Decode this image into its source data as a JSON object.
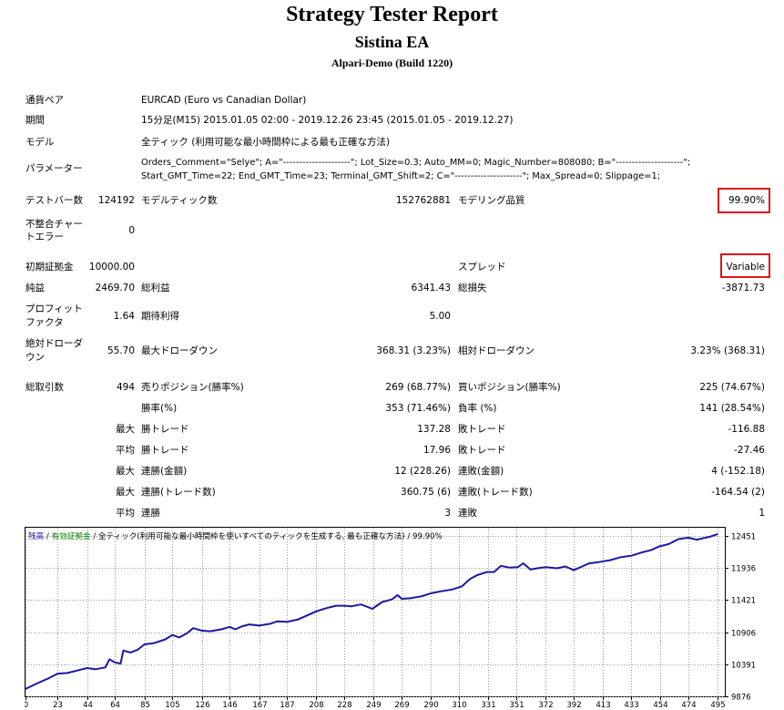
{
  "header": {
    "title": "Strategy Tester Report",
    "subtitle": "Sistina EA",
    "server": "Alpari-Demo (Build 1220)"
  },
  "settings": {
    "symbol_label": "通貨ペア",
    "symbol_value": "EURCAD (Euro vs Canadian Dollar)",
    "period_label": "期間",
    "period_value": "15分足(M15) 2015.01.05 02:00 - 2019.12.26 23:45 (2015.01.05 - 2019.12.27)",
    "model_label": "モデル",
    "model_value": "全ティック (利用可能な最小時間枠による最も正確な方法)",
    "params_label": "パラメーター",
    "params_line1": "Orders_Comment=\"Selye\"; A=\"---------------------\"; Lot_Size=0.3; Auto_MM=0; Magic_Number=808080; B=\"---------------------\";",
    "params_line2": "Start_GMT_Time=22; End_GMT_Time=23; Terminal_GMT_Shift=2; C=\"---------------------\"; Max_Spread=0; Slippage=1;"
  },
  "summary": {
    "bars_label": "テストバー数",
    "bars_value": "124192",
    "ticks_label": "モデルティック数",
    "ticks_value": "152762881",
    "quality_label": "モデリング品質",
    "quality_value": "99.90%",
    "mismatch_label_1": "不整合チャー",
    "mismatch_label_2": "トエラー",
    "mismatch_value": "0",
    "deposit_label": "初期証拠金",
    "deposit_value": "10000.00",
    "spread_label": "スプレッド",
    "spread_value": "Variable",
    "net_label": "純益",
    "net_value": "2469.70",
    "gross_profit_label": "総利益",
    "gross_profit_value": "6341.43",
    "gross_loss_label": "総損失",
    "gross_loss_value": "-3871.73",
    "pf_label_1": "プロフィット",
    "pf_label_2": "ファクタ",
    "pf_value": "1.64",
    "expected_label": "期待利得",
    "expected_value": "5.00",
    "abs_dd_label_1": "絶対ドローダ",
    "abs_dd_label_2": "ウン",
    "abs_dd_value": "55.70",
    "max_dd_label": "最大ドローダウン",
    "max_dd_value": "368.31 (3.23%)",
    "rel_dd_label": "相対ドローダウン",
    "rel_dd_value": "3.23% (368.31)"
  },
  "trades": {
    "total_label": "総取引数",
    "total_value": "494",
    "short_label": "売りポジション(勝率%)",
    "short_value": "269 (68.77%)",
    "long_label": "買いポジション(勝率%)",
    "long_value": "225 (74.67%)",
    "win_label": "勝率(%)",
    "win_value": "353 (71.46%)",
    "loss_label": "負率 (%)",
    "loss_value": "141 (28.54%)",
    "max1": "最大",
    "max_win_label": "勝トレード",
    "max_win_value": "137.28",
    "max_loss_label": "敗トレード",
    "max_loss_value": "-116.88",
    "avg1": "平均",
    "avg_win_label": "勝トレード",
    "avg_win_value": "17.96",
    "avg_loss_label": "敗トレード",
    "avg_loss_value": "-27.46",
    "max2": "最大",
    "cons_wins_money_label": "連勝(金額)",
    "cons_wins_money_value": "12 (228.26)",
    "cons_losses_money_label": "連敗(金額)",
    "cons_losses_money_value": "4 (-152.18)",
    "max3": "最大",
    "cons_profit_label": "連勝(トレード数)",
    "cons_profit_value": "360.75 (6)",
    "cons_loss_label": "連敗(トレード数)",
    "cons_loss_value": "-164.54 (2)",
    "avg2": "平均",
    "avg_cons_wins_label": "連勝",
    "avg_cons_wins_value": "3",
    "avg_cons_losses_label": "連敗",
    "avg_cons_losses_value": "1"
  },
  "chart_legend": {
    "balance": "残高",
    "sep1": " / ",
    "equity": "有効証拠金",
    "rest": " / 全ティック(利用可能な最小時間枠を使いすべてのティックを生成する, 最も正確な方法) / 99.90%"
  },
  "colors": {
    "balance_line": "#1a1aa0",
    "equity_legend": "#008000",
    "highlight_box": "#e0121a"
  },
  "chart_data": {
    "type": "line",
    "series": [
      {
        "name": "残高",
        "x": [
          0,
          8,
          16,
          23,
          30,
          37,
          44,
          50,
          57,
          60,
          64,
          68,
          70,
          75,
          80,
          85,
          92,
          100,
          105,
          110,
          115,
          120,
          126,
          132,
          140,
          146,
          150,
          155,
          160,
          167,
          175,
          180,
          187,
          195,
          200,
          208,
          215,
          222,
          228,
          233,
          240,
          248,
          255,
          262,
          266,
          269,
          275,
          283,
          290,
          297,
          305,
          312,
          318,
          323,
          330,
          335,
          340,
          346,
          352,
          356,
          361,
          366,
          372,
          380,
          386,
          392,
          398,
          403,
          410,
          418,
          426,
          433,
          440,
          447,
          453,
          460,
          467,
          474,
          480,
          486,
          490,
          495
        ],
        "y": [
          9995,
          10080,
          10160,
          10240,
          10250,
          10290,
          10330,
          10310,
          10340,
          10470,
          10420,
          10400,
          10610,
          10580,
          10620,
          10710,
          10730,
          10790,
          10860,
          10820,
          10880,
          10970,
          10930,
          10920,
          10950,
          10990,
          10950,
          11000,
          11030,
          11010,
          11040,
          11080,
          11070,
          11110,
          11160,
          11240,
          11290,
          11330,
          11330,
          11320,
          11350,
          11280,
          11390,
          11430,
          11500,
          11440,
          11450,
          11480,
          11530,
          11560,
          11590,
          11640,
          11760,
          11820,
          11870,
          11870,
          11970,
          11940,
          11950,
          12010,
          11910,
          11930,
          11950,
          11930,
          11960,
          11900,
          11960,
          12010,
          12030,
          12060,
          12110,
          12130,
          12180,
          12220,
          12280,
          12320,
          12400,
          12420,
          12390,
          12420,
          12440,
          12480
        ]
      }
    ],
    "x_ticks": [
      0,
      23,
      44,
      64,
      85,
      105,
      126,
      146,
      167,
      187,
      208,
      228,
      249,
      269,
      290,
      310,
      331,
      351,
      372,
      392,
      413,
      433,
      454,
      474,
      495
    ],
    "y_ticks": [
      9876,
      10391,
      10906,
      11421,
      11936,
      12451
    ],
    "xlim": [
      0,
      500
    ],
    "ylim": [
      9876,
      12581
    ],
    "grid": true
  }
}
